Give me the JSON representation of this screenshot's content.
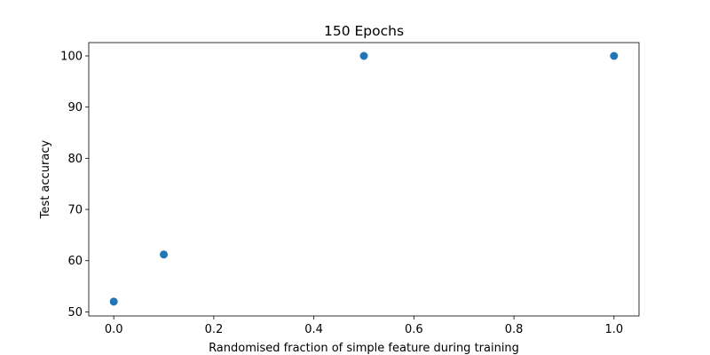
{
  "chart_data": {
    "type": "scatter",
    "title": "150 Epochs",
    "xlabel": "Randomised fraction of simple feature during training",
    "ylabel": "Test accuracy",
    "xlim": [
      -0.05,
      1.05
    ],
    "ylim": [
      49.2,
      102.6
    ],
    "xticks": [
      0.0,
      0.2,
      0.4,
      0.6,
      0.8,
      1.0
    ],
    "xtick_labels": [
      "0.0",
      "0.2",
      "0.4",
      "0.6",
      "0.8",
      "1.0"
    ],
    "yticks": [
      50,
      60,
      70,
      80,
      90,
      100
    ],
    "ytick_labels": [
      "50",
      "60",
      "70",
      "80",
      "90",
      "100"
    ],
    "grid": false,
    "legend": "none",
    "color": "#1f77b4",
    "series": [
      {
        "x": [
          0.0,
          0.1,
          0.5,
          1.0
        ],
        "y": [
          52.0,
          61.2,
          100.0,
          100.0
        ]
      }
    ]
  }
}
